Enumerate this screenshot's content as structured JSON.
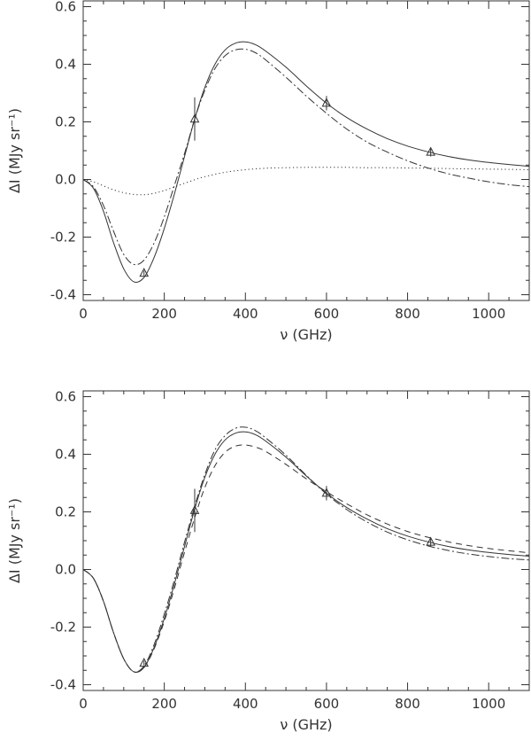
{
  "chart_data": [
    {
      "type": "line",
      "xlabel": "ν (GHz)",
      "ylabel": "ΔI (MJy sr⁻¹)",
      "xlim": [
        0,
        1100
      ],
      "ylim": [
        -0.42,
        0.62
      ],
      "xticks": [
        "0",
        "200",
        "400",
        "600",
        "800",
        "1000"
      ],
      "yticks": [
        "-0.4",
        "-0.2",
        "0.0",
        "0.2",
        "0.4",
        "0.6"
      ],
      "xtick_values": [
        0,
        200,
        400,
        600,
        800,
        1000
      ],
      "ytick_values": [
        -0.4,
        -0.2,
        0.0,
        0.2,
        0.4,
        0.6
      ],
      "series": [
        {
          "style": "solid",
          "x": [
            0,
            25,
            50,
            75,
            100,
            125,
            150,
            175,
            200,
            225,
            250,
            275,
            300,
            325,
            350,
            375,
            400,
            425,
            450,
            500,
            550,
            600,
            650,
            700,
            750,
            800,
            850,
            900,
            950,
            1000,
            1050,
            1100
          ],
          "y": [
            0.0,
            -0.03,
            -0.11,
            -0.22,
            -0.31,
            -0.355,
            -0.34,
            -0.27,
            -0.17,
            -0.05,
            0.08,
            0.21,
            0.32,
            0.4,
            0.45,
            0.473,
            0.478,
            0.468,
            0.446,
            0.39,
            0.325,
            0.265,
            0.215,
            0.175,
            0.142,
            0.116,
            0.096,
            0.08,
            0.068,
            0.059,
            0.052,
            0.046
          ]
        },
        {
          "style": "dash-dot",
          "x": [
            0,
            25,
            50,
            75,
            100,
            125,
            150,
            175,
            200,
            225,
            250,
            275,
            300,
            325,
            350,
            375,
            400,
            425,
            450,
            500,
            550,
            600,
            650,
            700,
            750,
            800,
            850,
            900,
            950,
            1000,
            1050,
            1100
          ],
          "y": [
            0.0,
            -0.025,
            -0.09,
            -0.18,
            -0.26,
            -0.295,
            -0.28,
            -0.22,
            -0.13,
            -0.02,
            0.09,
            0.21,
            0.31,
            0.385,
            0.43,
            0.45,
            0.452,
            0.44,
            0.415,
            0.355,
            0.29,
            0.23,
            0.175,
            0.13,
            0.095,
            0.065,
            0.04,
            0.02,
            0.005,
            -0.008,
            -0.018,
            -0.025
          ]
        },
        {
          "style": "dotted",
          "x": [
            0,
            25,
            50,
            75,
            100,
            125,
            150,
            175,
            200,
            225,
            250,
            275,
            300,
            350,
            400,
            450,
            500,
            550,
            600,
            650,
            700,
            750,
            800,
            850,
            900,
            950,
            1000,
            1050,
            1100
          ],
          "y": [
            0.0,
            -0.008,
            -0.022,
            -0.036,
            -0.046,
            -0.052,
            -0.053,
            -0.048,
            -0.038,
            -0.026,
            -0.013,
            -0.001,
            0.01,
            0.025,
            0.034,
            0.039,
            0.041,
            0.042,
            0.042,
            0.042,
            0.041,
            0.041,
            0.04,
            0.039,
            0.038,
            0.037,
            0.036,
            0.035,
            0.034
          ]
        }
      ],
      "points": [
        {
          "x": 150,
          "y": -0.325,
          "err": 0.008
        },
        {
          "x": 275,
          "y": 0.21,
          "err": 0.075
        },
        {
          "x": 600,
          "y": 0.265,
          "err": 0.025
        },
        {
          "x": 857,
          "y": 0.095,
          "err": 0.015
        }
      ]
    },
    {
      "type": "line",
      "xlabel": "ν (GHz)",
      "ylabel": "ΔI (MJy sr⁻¹)",
      "xlim": [
        0,
        1100
      ],
      "ylim": [
        -0.42,
        0.62
      ],
      "xticks": [
        "0",
        "200",
        "400",
        "600",
        "800",
        "1000"
      ],
      "yticks": [
        "-0.4",
        "-0.2",
        "0.0",
        "0.2",
        "0.4",
        "0.6"
      ],
      "xtick_values": [
        0,
        200,
        400,
        600,
        800,
        1000
      ],
      "ytick_values": [
        -0.4,
        -0.2,
        0.0,
        0.2,
        0.4,
        0.6
      ],
      "series": [
        {
          "style": "solid",
          "x": [
            0,
            25,
            50,
            75,
            100,
            125,
            150,
            175,
            200,
            225,
            250,
            275,
            300,
            325,
            350,
            375,
            400,
            425,
            450,
            500,
            550,
            600,
            650,
            700,
            750,
            800,
            850,
            900,
            950,
            1000,
            1050,
            1100
          ],
          "y": [
            0.0,
            -0.03,
            -0.11,
            -0.22,
            -0.31,
            -0.355,
            -0.34,
            -0.27,
            -0.17,
            -0.05,
            0.08,
            0.21,
            0.32,
            0.4,
            0.45,
            0.473,
            0.478,
            0.468,
            0.446,
            0.39,
            0.325,
            0.265,
            0.215,
            0.175,
            0.142,
            0.116,
            0.096,
            0.08,
            0.068,
            0.059,
            0.052,
            0.046
          ]
        },
        {
          "style": "dash-dot",
          "x": [
            0,
            25,
            50,
            75,
            100,
            125,
            150,
            175,
            200,
            225,
            250,
            275,
            300,
            325,
            350,
            375,
            400,
            425,
            450,
            500,
            550,
            600,
            650,
            700,
            750,
            800,
            850,
            900,
            950,
            1000,
            1050,
            1100
          ],
          "y": [
            0.0,
            -0.03,
            -0.11,
            -0.22,
            -0.31,
            -0.355,
            -0.335,
            -0.26,
            -0.155,
            -0.035,
            0.095,
            0.22,
            0.33,
            0.415,
            0.465,
            0.49,
            0.494,
            0.482,
            0.457,
            0.397,
            0.327,
            0.262,
            0.208,
            0.165,
            0.13,
            0.103,
            0.082,
            0.066,
            0.054,
            0.045,
            0.038,
            0.033
          ]
        },
        {
          "style": "dashed",
          "x": [
            0,
            25,
            50,
            75,
            100,
            125,
            150,
            175,
            200,
            225,
            250,
            275,
            300,
            325,
            350,
            375,
            400,
            425,
            450,
            500,
            550,
            600,
            650,
            700,
            750,
            800,
            850,
            900,
            950,
            1000,
            1050,
            1100
          ],
          "y": [
            0.0,
            -0.03,
            -0.11,
            -0.22,
            -0.31,
            -0.355,
            -0.34,
            -0.275,
            -0.18,
            -0.065,
            0.06,
            0.18,
            0.285,
            0.36,
            0.407,
            0.428,
            0.432,
            0.425,
            0.41,
            0.365,
            0.315,
            0.27,
            0.228,
            0.19,
            0.158,
            0.132,
            0.112,
            0.096,
            0.083,
            0.073,
            0.065,
            0.058
          ]
        }
      ],
      "points": [
        {
          "x": 150,
          "y": -0.325,
          "err": 0.008
        },
        {
          "x": 275,
          "y": 0.205,
          "err": 0.075
        },
        {
          "x": 600,
          "y": 0.265,
          "err": 0.025
        },
        {
          "x": 857,
          "y": 0.095,
          "err": 0.015
        }
      ]
    }
  ]
}
